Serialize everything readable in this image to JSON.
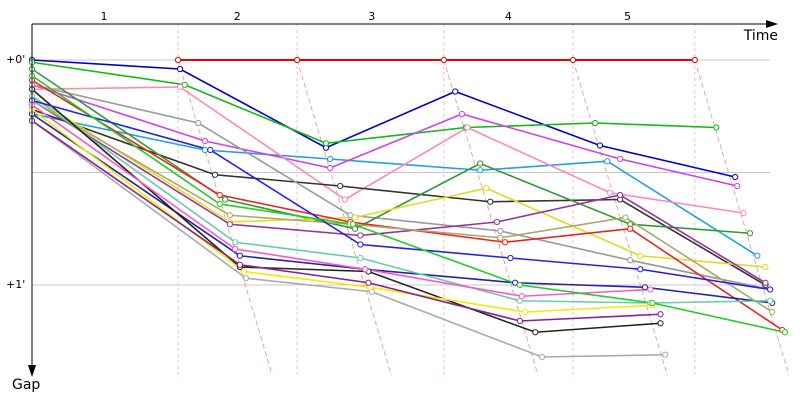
{
  "chart_data": {
    "type": "line",
    "xlabel": "Time",
    "ylabel": "Gap",
    "xlim": [
      0,
      11.25
    ],
    "ylim": [
      -0.16,
      1.4
    ],
    "xticks": [
      {
        "value": 1.07,
        "label": "1"
      },
      {
        "value": 3.05,
        "label": "2"
      },
      {
        "value": 5.05,
        "label": "3"
      },
      {
        "value": 7.08,
        "label": "4"
      },
      {
        "value": 8.85,
        "label": "5"
      }
    ],
    "yticks": [
      {
        "value": 0,
        "label": "+0'"
      },
      {
        "value": 0.5,
        "label": null
      },
      {
        "value": 1,
        "label": "+1'"
      }
    ],
    "grid": true,
    "lap_line_color": "#f4a0a0",
    "series": [
      {
        "color": "#ee0000",
        "x": [
          2.17,
          3.94,
          6.12,
          8.04,
          9.85
        ],
        "values": [
          0,
          0,
          0,
          0,
          0
        ]
      },
      {
        "color": "#0000cc",
        "x": [
          0,
          2.2,
          4.37,
          6.29,
          8.44,
          10.45
        ],
        "values": [
          0,
          0.04,
          0.39,
          0.14,
          0.38,
          0.52
        ]
      },
      {
        "color": "#11bb11",
        "x": [
          0,
          2.27,
          4.37,
          6.45,
          8.37,
          10.17
        ],
        "values": [
          0.01,
          0.11,
          0.37,
          0.3,
          0.28,
          0.3
        ]
      },
      {
        "color": "#22a0e0",
        "x": [
          0,
          2.57,
          4.43,
          6.66,
          8.55,
          10.78
        ],
        "values": [
          0.24,
          0.4,
          0.44,
          0.49,
          0.45,
          0.87
        ]
      },
      {
        "color": "#cc44ee",
        "x": [
          0,
          2.57,
          4.43,
          6.39,
          8.74,
          10.48
        ],
        "values": [
          0.11,
          0.36,
          0.48,
          0.24,
          0.44,
          0.56
        ]
      },
      {
        "color": "#ff88bb",
        "x": [
          0,
          2.2,
          4.65,
          6.47,
          8.59,
          10.57
        ],
        "values": [
          0.13,
          0.12,
          0.62,
          0.3,
          0.59,
          0.68
        ]
      },
      {
        "color": "#333333",
        "x": [
          0,
          2.72,
          4.58,
          6.81,
          8.74,
          10.9
        ],
        "values": [
          0.22,
          0.51,
          0.56,
          0.63,
          0.62,
          1
        ]
      },
      {
        "color": "#999999",
        "x": [
          0,
          2.47,
          4.73,
          6.96,
          8.89,
          10.97
        ],
        "values": [
          0.11,
          0.28,
          0.69,
          0.76,
          0.89,
          1.02
        ]
      },
      {
        "color": "#339933",
        "x": [
          0,
          2.87,
          4.8,
          6.66,
          8.89,
          10.67
        ],
        "values": [
          0.04,
          0.62,
          0.75,
          0.46,
          0.73,
          0.77
        ]
      },
      {
        "color": "#dddd22",
        "x": [
          0,
          2.94,
          4.8,
          6.75,
          9.04,
          10.9
        ],
        "values": [
          0.16,
          0.72,
          0.7,
          0.57,
          0.87,
          0.92
        ]
      },
      {
        "color": "#993399",
        "x": [
          0,
          2.94,
          4.88,
          6.91,
          8.74,
          10.9
        ],
        "values": [
          0.18,
          0.73,
          0.78,
          0.72,
          0.6,
          0.99
        ]
      },
      {
        "color": "#ee2222",
        "x": [
          0,
          2.79,
          4.73,
          7.03,
          8.89,
          11.15
        ],
        "values": [
          0.09,
          0.6,
          0.72,
          0.81,
          0.75,
          1.2
        ]
      },
      {
        "color": "#2222aa",
        "x": [
          0,
          3.09,
          4.95,
          7.18,
          9.11,
          11.0
        ],
        "values": [
          0.24,
          0.87,
          0.93,
          0.99,
          1.01,
          1.08
        ]
      },
      {
        "color": "#aaaa66",
        "x": [
          0,
          2.94,
          4.73,
          6.96,
          8.82,
          11.0
        ],
        "values": [
          0.18,
          0.69,
          0.73,
          0.79,
          0.7,
          1.12
        ]
      },
      {
        "color": "#66ccaa",
        "x": [
          0,
          3.02,
          4.88,
          7.25,
          9.19,
          10.97
        ],
        "values": [
          0.16,
          0.81,
          0.88,
          1.07,
          1.08,
          1.07
        ]
      },
      {
        "color": "#222222",
        "x": [
          0,
          3.09,
          5.0,
          7.48,
          9.34
        ],
        "values": [
          0.13,
          0.92,
          0.94,
          1.21,
          1.17
        ]
      },
      {
        "color": "#aaaaaa",
        "x": [
          0,
          3.18,
          5.05,
          7.58,
          9.41
        ],
        "values": [
          0.27,
          0.97,
          1.03,
          1.32,
          1.31
        ]
      },
      {
        "color": "#eeee00",
        "x": [
          0,
          3.15,
          5.02,
          7.33,
          9.22
        ],
        "values": [
          0.22,
          0.94,
          1.01,
          1.12,
          1.09
        ]
      },
      {
        "color": "#2222ee",
        "x": [
          0,
          2.65,
          4.88,
          7.11,
          9.04,
          10.97
        ],
        "values": [
          0.18,
          0.4,
          0.82,
          0.88,
          0.93,
          1.02
        ]
      },
      {
        "color": "#ff55cc",
        "x": [
          0,
          3.02,
          4.95,
          7.28,
          9.19
        ],
        "values": [
          0.2,
          0.84,
          0.93,
          1.05,
          1.02
        ]
      },
      {
        "color": "#22cc22",
        "x": [
          0,
          2.79,
          4.77,
          7.25,
          9.22,
          11.19
        ],
        "values": [
          0.07,
          0.64,
          0.73,
          1.0,
          1.08,
          1.21
        ]
      },
      {
        "color": "#882288",
        "x": [
          0,
          3.09,
          5.0,
          7.25,
          9.34
        ],
        "values": [
          0.27,
          0.91,
          0.99,
          1.16,
          1.13
        ]
      }
    ]
  }
}
